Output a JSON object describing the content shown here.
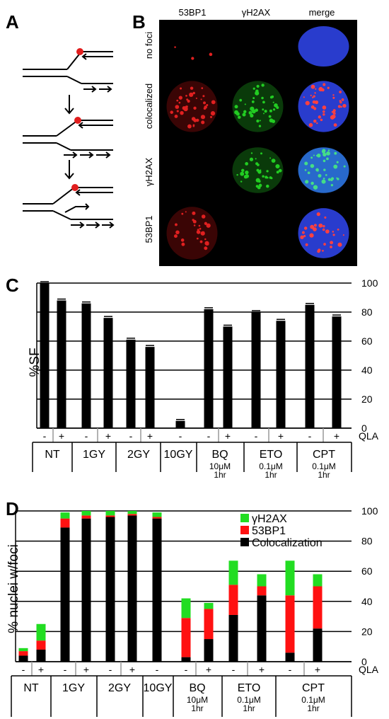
{
  "panels": {
    "a": "A",
    "b": "B",
    "c": "C",
    "d": "D"
  },
  "micro": {
    "columns": [
      "53BP1",
      "γH2AX",
      "merge"
    ],
    "rows": [
      "no foci",
      "colocalized",
      "γH2AX",
      "53BP1"
    ]
  },
  "colors": {
    "gh2ax": "#22dd22",
    "bp1": "#ff1111",
    "coloc": "#000000",
    "lesion": "#e11d1d"
  },
  "conditions": [
    {
      "name": "NT",
      "sub": []
    },
    {
      "name": "1GY",
      "sub": []
    },
    {
      "name": "2GY",
      "sub": []
    },
    {
      "name": "10GY",
      "sub": []
    },
    {
      "name": "BQ",
      "sub": [
        "10μM",
        "1hr"
      ]
    },
    {
      "name": "ETO",
      "sub": [
        "0.1μM",
        "1hr"
      ]
    },
    {
      "name": "CPT",
      "sub": [
        "0.1μM",
        "1hr"
      ]
    }
  ],
  "qla_label": "QLA",
  "chart_data": [
    {
      "type": "bar",
      "panel": "C",
      "ylabel": "%SF",
      "ylim": [
        0,
        100
      ],
      "yticks": [
        0,
        20,
        40,
        60,
        80,
        100
      ],
      "grid": true,
      "categories": [
        "NT -",
        "NT +",
        "1GY -",
        "1GY +",
        "2GY -",
        "2GY +",
        "10GY -",
        "BQ -",
        "BQ +",
        "ETO -",
        "ETO +",
        "CPT -",
        "CPT +"
      ],
      "values": [
        100,
        88,
        86,
        76,
        61,
        56,
        5,
        82,
        70,
        80,
        74,
        85,
        77
      ],
      "qla_signs": [
        "-",
        "+",
        "-",
        "+",
        "-",
        "+",
        "-",
        "-",
        "+",
        "-",
        "+",
        "-",
        "+"
      ]
    },
    {
      "type": "bar",
      "stacked": true,
      "panel": "D",
      "ylabel": "% nuclei w/foci",
      "ylim": [
        0,
        100
      ],
      "yticks": [
        0,
        20,
        40,
        60,
        80,
        100
      ],
      "grid": true,
      "legend": "top-right",
      "categories": [
        "NT -",
        "NT +",
        "1GY -",
        "1GY +",
        "2GY -",
        "2GY +",
        "10GY -",
        "BQ -",
        "BQ +",
        "ETO -",
        "ETO +",
        "CPT -",
        "CPT +"
      ],
      "qla_signs": [
        "-",
        "+",
        "-",
        "+",
        "-",
        "+",
        "-",
        "-",
        "+",
        "-",
        "+",
        "-",
        "+"
      ],
      "series": [
        {
          "name": "Colocalization",
          "color": "#000000",
          "values": [
            4,
            8,
            89,
            95,
            96,
            97,
            95,
            3,
            15,
            31,
            44,
            6,
            22
          ]
        },
        {
          "name": "53BP1",
          "color": "#ff1111",
          "values": [
            3,
            6,
            6,
            2,
            1,
            1,
            1,
            26,
            20,
            20,
            6,
            38,
            28
          ]
        },
        {
          "name": "γH2AX",
          "color": "#22dd22",
          "values": [
            2,
            11,
            4,
            3,
            3,
            2,
            3,
            13,
            4,
            16,
            8,
            23,
            8
          ]
        }
      ]
    }
  ]
}
